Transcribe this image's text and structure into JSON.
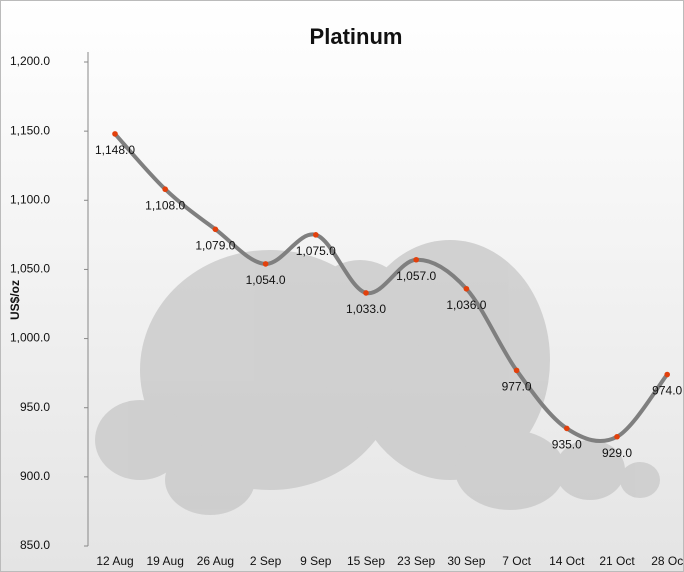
{
  "chart_data": {
    "type": "line",
    "title": "Platinum",
    "y_label": "US$/oz",
    "categories": [
      "12 Aug",
      "19 Aug",
      "26 Aug",
      "2 Sep",
      "9 Sep",
      "15 Sep",
      "23 Sep",
      "30 Sep",
      "7 Oct",
      "14 Oct",
      "21 Oct",
      "28 Oc"
    ],
    "series": [
      {
        "name": "Platinum",
        "color": "#7f7f7f",
        "marker_color": "#e2400c",
        "values": [
          1148,
          1108,
          1079,
          1054,
          1075,
          1033,
          1057,
          1036,
          977,
          935,
          929,
          974
        ],
        "value_labels": [
          "1,148.0",
          "1,108.0",
          "1,079.0",
          "1,054.0",
          "1,075.0",
          "1,033.0",
          "1,057.0",
          "1,036.0",
          "977.0",
          "935.0",
          "929.0",
          "974.0"
        ]
      }
    ],
    "ylim": [
      850,
      1200
    ],
    "yticks": [
      {
        "value": 850,
        "label": "850.0"
      },
      {
        "value": 900,
        "label": "900.0"
      },
      {
        "value": 950,
        "label": "950.0"
      },
      {
        "value": 1000,
        "label": "1,000.0"
      },
      {
        "value": 1050,
        "label": "1,050.0"
      },
      {
        "value": 1100,
        "label": "1,100.0"
      },
      {
        "value": 1150,
        "label": "1,150.0"
      },
      {
        "value": 1200,
        "label": "1,200.0"
      }
    ],
    "grid": false
  }
}
